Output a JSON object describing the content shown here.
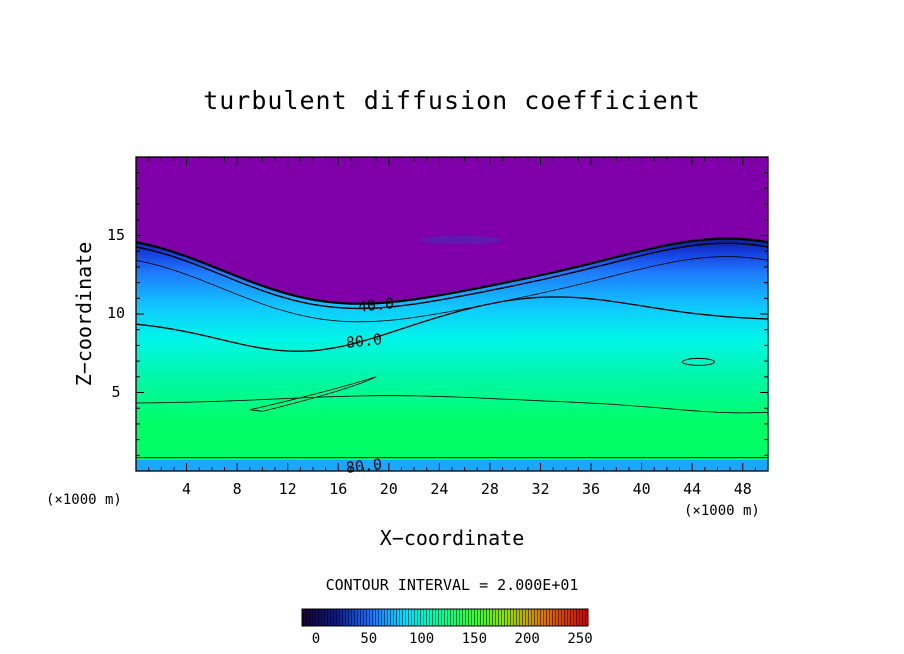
{
  "chart_data": {
    "type": "heatmap",
    "title": "turbulent diffusion coefficient",
    "xlabel": "X−coordinate",
    "ylabel": "Z−coordinate",
    "x_unit": "(×1000 m)",
    "z_unit": "(×1000 m)",
    "xlim": [
      0,
      50
    ],
    "ylim": [
      0,
      20
    ],
    "x_ticks": [
      "4",
      "8",
      "12",
      "16",
      "20",
      "24",
      "28",
      "32",
      "36",
      "40",
      "44",
      "48"
    ],
    "y_ticks": [
      "5",
      "10",
      "15"
    ],
    "contour_interval_text": "CONTOUR INTERVAL = 2.000E+01",
    "contour_labels": [
      "40.0",
      "80.0",
      "80.0"
    ],
    "colorbar": {
      "range": [
        0,
        250
      ],
      "ticks": [
        "0",
        "50",
        "100",
        "150",
        "200",
        "250"
      ]
    },
    "colors": {
      "upper_region": "#7f00a8",
      "surface_layer": "#00ff66"
    }
  }
}
